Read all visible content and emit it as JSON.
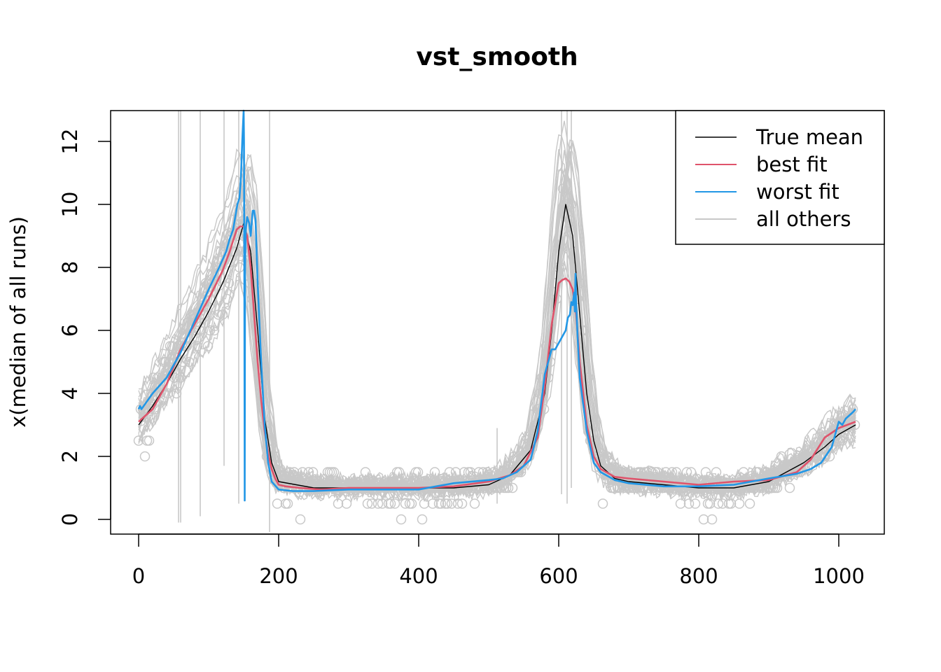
{
  "chart_data": {
    "type": "line",
    "title": "vst_smooth",
    "xlabel": "",
    "ylabel": "x(median of all runs)",
    "xlim": [
      -20,
      1032
    ],
    "ylim": [
      -0.5,
      13
    ],
    "xticks": [
      0,
      200,
      400,
      600,
      800,
      1000
    ],
    "xtick_labels": [
      "0",
      "200",
      "400",
      "600",
      "800",
      "1000"
    ],
    "yticks": [
      0,
      2,
      4,
      6,
      8,
      10,
      12
    ],
    "ytick_labels": [
      "0",
      "2",
      "4",
      "6",
      "8",
      "10",
      "12"
    ],
    "legend_position": "top-right",
    "legend": [
      {
        "label": "True mean",
        "color": "#000000"
      },
      {
        "label": "best fit",
        "color": "#DF536B"
      },
      {
        "label": "worst fit",
        "color": "#2297E6"
      },
      {
        "label": "all others",
        "color": "#C8C8C8"
      }
    ],
    "colors": {
      "true_mean": "#000000",
      "best_fit": "#DF536B",
      "worst_fit": "#2297E6",
      "others": "#C8C8C8",
      "points": "#C8C8C8"
    },
    "series": [
      {
        "name": "True mean",
        "x": [
          0,
          20,
          40,
          60,
          80,
          100,
          120,
          140,
          150,
          160,
          170,
          180,
          190,
          200,
          250,
          300,
          350,
          400,
          450,
          500,
          530,
          560,
          580,
          590,
          600,
          610,
          620,
          630,
          640,
          650,
          660,
          680,
          700,
          750,
          800,
          850,
          900,
          950,
          980,
          1000,
          1024
        ],
        "y": [
          3.0,
          3.6,
          4.3,
          5.1,
          5.8,
          6.6,
          7.5,
          8.6,
          9.4,
          8.5,
          6.0,
          3.2,
          1.8,
          1.2,
          1.0,
          1.0,
          1.0,
          1.0,
          1.0,
          1.1,
          1.4,
          2.2,
          4.0,
          6.0,
          8.5,
          10.0,
          9.0,
          6.5,
          4.0,
          2.5,
          1.7,
          1.3,
          1.2,
          1.1,
          1.0,
          1.0,
          1.2,
          1.8,
          2.3,
          2.7,
          3.0
        ]
      },
      {
        "name": "best fit",
        "x": [
          0,
          20,
          40,
          60,
          80,
          100,
          120,
          130,
          140,
          145,
          150,
          155,
          160,
          165,
          170,
          175,
          180,
          185,
          190,
          195,
          200,
          210,
          230,
          260,
          300,
          350,
          400,
          450,
          500,
          530,
          550,
          570,
          580,
          590,
          600,
          605,
          610,
          615,
          620,
          625,
          630,
          640,
          650,
          660,
          680,
          700,
          750,
          800,
          850,
          900,
          940,
          960,
          980,
          1000,
          1024
        ],
        "y": [
          3.1,
          3.5,
          4.3,
          5.4,
          6.2,
          7.0,
          7.9,
          8.5,
          9.2,
          9.3,
          9.3,
          9.0,
          8.0,
          6.5,
          5.0,
          3.8,
          2.8,
          2.1,
          1.6,
          1.3,
          1.1,
          1.05,
          1.0,
          0.95,
          1.0,
          1.0,
          1.0,
          1.05,
          1.2,
          1.4,
          1.7,
          2.6,
          4.2,
          6.2,
          7.5,
          7.6,
          7.65,
          7.55,
          7.3,
          6.5,
          5.0,
          3.0,
          2.0,
          1.6,
          1.35,
          1.3,
          1.2,
          1.1,
          1.2,
          1.25,
          1.5,
          1.9,
          2.6,
          2.9,
          3.1
        ]
      },
      {
        "name": "worst fit",
        "x": [
          0,
          2,
          4,
          20,
          40,
          60,
          80,
          100,
          115,
          125,
          130,
          135,
          138,
          141,
          144,
          146,
          148,
          149,
          150,
          150.5,
          151,
          151.5,
          152,
          153,
          155,
          158,
          160,
          163,
          165,
          167,
          170,
          175,
          180,
          185,
          190,
          200,
          220,
          250,
          300,
          350,
          400,
          450,
          500,
          520,
          540,
          560,
          570,
          575,
          580,
          585,
          590,
          595,
          600,
          605,
          610,
          613,
          616,
          618,
          620,
          622,
          623,
          624,
          625,
          627,
          630,
          640,
          650,
          660,
          680,
          700,
          750,
          800,
          850,
          900,
          940,
          960,
          975,
          990,
          1000,
          1005,
          1010,
          1015,
          1020,
          1024
        ],
        "y": [
          3.5,
          3.6,
          3.5,
          4.0,
          4.5,
          5.3,
          6.3,
          7.3,
          8.0,
          8.5,
          8.9,
          9.2,
          9.6,
          10.0,
          10.2,
          10.8,
          12.0,
          12.5,
          13.0,
          12.0,
          7.5,
          0.6,
          8.0,
          9.2,
          9.6,
          9.4,
          9.0,
          9.8,
          9.8,
          9.5,
          7.5,
          5.0,
          3.0,
          1.8,
          1.2,
          0.95,
          0.9,
          0.9,
          0.95,
          0.95,
          0.95,
          1.15,
          1.25,
          1.3,
          1.5,
          1.9,
          2.8,
          3.7,
          4.6,
          5.0,
          5.4,
          5.4,
          5.6,
          5.8,
          6.0,
          6.4,
          6.5,
          6.9,
          6.8,
          7.2,
          6.6,
          7.8,
          6.8,
          5.8,
          4.5,
          2.8,
          1.8,
          1.5,
          1.25,
          1.15,
          1.05,
          1.05,
          1.1,
          1.3,
          1.45,
          1.6,
          1.8,
          2.3,
          3.1,
          3.0,
          3.2,
          3.3,
          3.4,
          3.5
        ]
      }
    ]
  }
}
